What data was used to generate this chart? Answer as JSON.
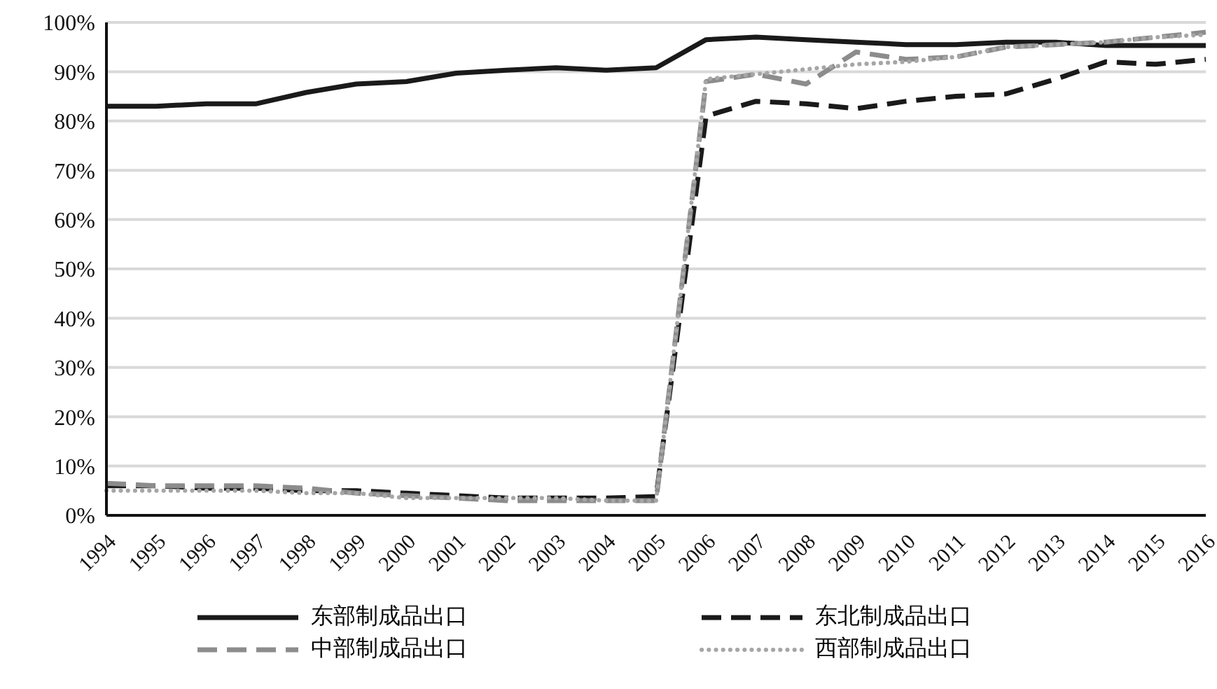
{
  "chart_data": {
    "type": "line",
    "categories": [
      "1994",
      "1995",
      "1996",
      "1997",
      "1998",
      "1999",
      "2000",
      "2001",
      "2002",
      "2003",
      "2004",
      "2005",
      "2006",
      "2007",
      "2008",
      "2009",
      "2010",
      "2011",
      "2012",
      "2013",
      "2014",
      "2015",
      "2016"
    ],
    "series": [
      {
        "name": "东部制成品出口",
        "color": "#1a1a1a",
        "line_style": "solid",
        "values": [
          83,
          83,
          83.5,
          83.5,
          85.8,
          87.5,
          88,
          89.7,
          90.3,
          90.8,
          90.3,
          90.8,
          96.5,
          97,
          96.5,
          96,
          95.5,
          95.5,
          96,
          96,
          95.3,
          95.3,
          95.3
        ]
      },
      {
        "name": "东北制成品出口",
        "color": "#1a1a1a",
        "line_style": "dashed",
        "values": [
          6,
          6,
          5.5,
          5.5,
          5,
          5,
          4.5,
          4,
          3.5,
          3.5,
          3.5,
          3.8,
          81,
          84,
          83.5,
          82.5,
          84,
          85,
          85.5,
          88.5,
          92,
          91.5,
          92.5
        ]
      },
      {
        "name": "中部制成品出口",
        "color": "#8c8c8c",
        "line_style": "dashed",
        "values": [
          6.5,
          6,
          6,
          6,
          5.5,
          4.5,
          4,
          3.5,
          3,
          3,
          3,
          3,
          88,
          89.5,
          87.5,
          94,
          92.5,
          93,
          95,
          95.5,
          96,
          97,
          98
        ]
      },
      {
        "name": "西部制成品出口",
        "color": "#a6a6a6",
        "line_style": "dotted",
        "values": [
          5,
          5,
          5,
          5,
          4.5,
          4.5,
          3.5,
          3.5,
          3.5,
          3.5,
          3,
          3,
          88.5,
          89.5,
          90.5,
          91.5,
          92,
          93,
          95,
          95.5,
          96,
          97,
          97.5
        ]
      }
    ],
    "ylim": [
      0,
      100
    ],
    "yticks": [
      {
        "value": 0,
        "label": "0%"
      },
      {
        "value": 10,
        "label": "10%"
      },
      {
        "value": 20,
        "label": "20%"
      },
      {
        "value": 30,
        "label": "30%"
      },
      {
        "value": 40,
        "label": "40%"
      },
      {
        "value": 50,
        "label": "50%"
      },
      {
        "value": 60,
        "label": "60%"
      },
      {
        "value": 70,
        "label": "70%"
      },
      {
        "value": 80,
        "label": "80%"
      },
      {
        "value": 90,
        "label": "90%"
      },
      {
        "value": 100,
        "label": "100%"
      }
    ],
    "grid": "y",
    "legend": "bottom",
    "marker": "none"
  }
}
